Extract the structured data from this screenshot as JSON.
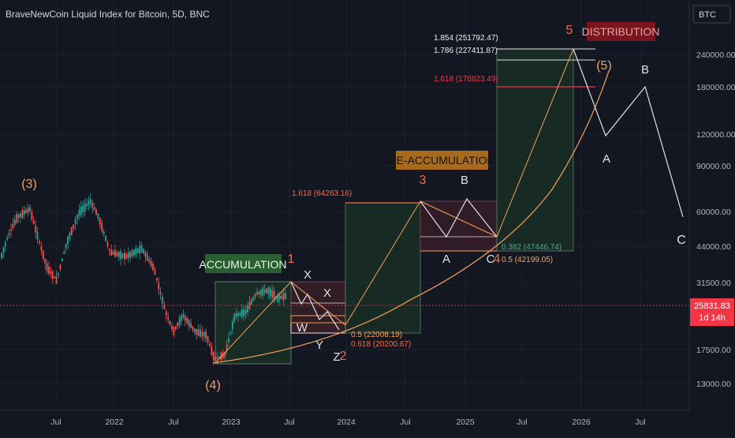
{
  "header": {
    "title": "BraveNewCoin Liquid Index for Bitcoin, 5D, BNC",
    "currency_button": "BTC"
  },
  "price_scale": {
    "ticks": [
      "240000.00",
      "180000.00",
      "120000.00",
      "90000.00",
      "60000.00",
      "44000.00",
      "31500.00",
      "17500.00",
      "13000.00"
    ],
    "current_price": "25831.83",
    "countdown": "1d 14h",
    "current_price_color": "#f23645"
  },
  "time_scale": {
    "ticks": [
      "Jul",
      "2022",
      "Jul",
      "2023",
      "Jul",
      "2024",
      "Jul",
      "2025",
      "Jul",
      "2026",
      "Jul"
    ]
  },
  "colors": {
    "up_candle": "#26a69a",
    "down_candle": "#ef5350",
    "wave_label_orange": "#f5a05a",
    "wave_label_red": "#f56b4a",
    "projection_line": "#e5e5cc",
    "curve": "#f5a05a"
  },
  "chart_data": {
    "type": "candlestick",
    "log_scale": true,
    "ylim": [
      11000,
      280000
    ],
    "wave_labels": [
      "(3)",
      "(4)",
      "1",
      "2",
      "3",
      "4",
      "5",
      "(5)",
      "X",
      "X",
      "W",
      "Y",
      "Z",
      "A",
      "B",
      "C",
      "A",
      "B",
      "C"
    ],
    "zones": [
      "ACCUMULATION",
      "RE-ACCUMULATION",
      "DISTRIBUTION"
    ],
    "fib_levels": [
      "1.854 (251792.47)",
      "1.786 (227411.87)",
      "1.618 (176823.49)",
      "1.618 (64263.16)",
      "0.382 (47446.74)",
      "0.5 (42199.05)",
      "0.5 (22008.19)",
      "0.618 (20200.67)"
    ]
  }
}
